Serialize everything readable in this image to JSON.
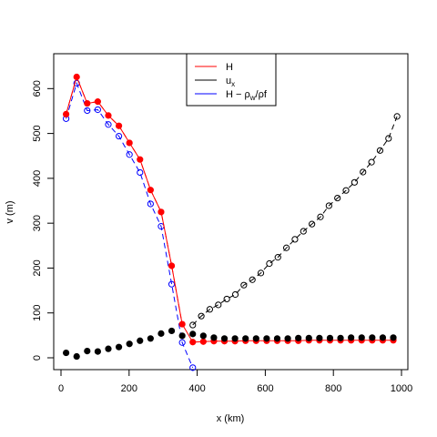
{
  "chart_data": {
    "type": "scatter",
    "title": "",
    "xlabel": "x (km)",
    "ylabel": "v (m)",
    "xlim": [
      0,
      1000
    ],
    "ylim": [
      0,
      625
    ],
    "x_ticks": [
      0,
      200,
      400,
      600,
      800,
      1000
    ],
    "y_ticks": [
      0,
      100,
      200,
      300,
      400,
      500,
      600
    ],
    "x_tick_labels": [
      "0",
      "200",
      "400",
      "600",
      "800",
      "1000"
    ],
    "y_tick_labels": [
      "0",
      "100",
      "200",
      "300",
      "400",
      "500",
      "600"
    ],
    "grid": false,
    "legend_position": "top-center",
    "legend": [
      {
        "label_parts": [
          "H"
        ],
        "color": "#ff0000"
      },
      {
        "label_parts": [
          "u",
          "x",
          ""
        ],
        "color": "#000000"
      },
      {
        "label_parts": [
          "H − ρ",
          "w",
          "/ρf"
        ],
        "color": "#0000ff"
      }
    ],
    "series": [
      {
        "key": "H_line",
        "color": "#ff0000",
        "style": "solid-line",
        "x": [
          15,
          46,
          77,
          108,
          139,
          170,
          201,
          232,
          263,
          294,
          325,
          356,
          387,
          418,
          449,
          480,
          511,
          542,
          573,
          604,
          635,
          666,
          697,
          728,
          759,
          790,
          821,
          852,
          883,
          914,
          945,
          976
        ],
        "y": [
          543,
          626,
          567,
          571,
          540,
          517,
          479,
          442,
          374,
          325,
          205,
          75,
          35,
          36,
          37,
          37,
          37,
          38,
          38,
          38,
          38,
          38,
          38,
          39,
          39,
          39,
          39,
          39,
          39,
          39,
          39,
          39
        ]
      },
      {
        "key": "H_dashed",
        "color": "#ff0000",
        "style": "dashed-line",
        "x": [
          15,
          46,
          77,
          108,
          139,
          170,
          201,
          232,
          263,
          294,
          325,
          356
        ],
        "y": [
          543,
          626,
          567,
          571,
          540,
          517,
          479,
          442,
          374,
          325,
          205,
          75
        ]
      },
      {
        "key": "H_points",
        "color": "#ff0000",
        "style": "filled-points",
        "x": [
          15,
          46,
          77,
          108,
          139,
          170,
          201,
          232,
          263,
          294,
          325,
          356,
          387,
          418,
          449,
          480,
          511,
          542,
          573,
          604,
          635,
          666,
          697,
          728,
          759,
          790,
          821,
          852,
          883,
          914,
          945,
          976
        ],
        "y": [
          543,
          626,
          567,
          571,
          540,
          517,
          479,
          442,
          374,
          325,
          205,
          75,
          35,
          36,
          37,
          37,
          37,
          38,
          38,
          38,
          38,
          38,
          38,
          39,
          39,
          39,
          39,
          39,
          39,
          39,
          39,
          39
        ]
      },
      {
        "key": "ux_grounded",
        "color": "#000000",
        "style": "filled-points",
        "x": [
          15,
          46,
          77,
          108,
          139,
          170,
          201,
          232,
          263,
          294,
          325,
          356,
          387,
          418,
          449,
          480,
          511,
          542,
          573,
          604,
          635,
          666,
          697,
          728,
          759,
          790,
          821,
          852,
          883,
          914,
          945,
          976
        ],
        "y": [
          11,
          3,
          15,
          14,
          20,
          24,
          31,
          38,
          43,
          54,
          60,
          49,
          53,
          49,
          45,
          43,
          43,
          43,
          43,
          43,
          43,
          43,
          44,
          44,
          44,
          44,
          44,
          45,
          45,
          45,
          45,
          45
        ]
      },
      {
        "key": "ux_float",
        "color": "#000000",
        "style": "dashed-open-points",
        "x": [
          387,
          412,
          437,
          462,
          487,
          512,
          537,
          562,
          587,
          612,
          637,
          662,
          687,
          712,
          737,
          762,
          787,
          812,
          837,
          862,
          887,
          912,
          937,
          962,
          987
        ],
        "y": [
          73,
          93,
          108,
          118,
          131,
          141,
          162,
          174,
          189,
          210,
          224,
          245,
          264,
          282,
          298,
          314,
          339,
          356,
          373,
          391,
          414,
          436,
          462,
          489,
          538
        ]
      },
      {
        "key": "H_minus",
        "color": "#0000ff",
        "style": "dashed-open-points",
        "x": [
          15,
          46,
          77,
          108,
          139,
          170,
          201,
          232,
          263,
          294,
          325,
          356,
          387
        ],
        "y": [
          533,
          612,
          551,
          553,
          520,
          494,
          453,
          413,
          343,
          293,
          164,
          34,
          -22
        ]
      }
    ]
  }
}
